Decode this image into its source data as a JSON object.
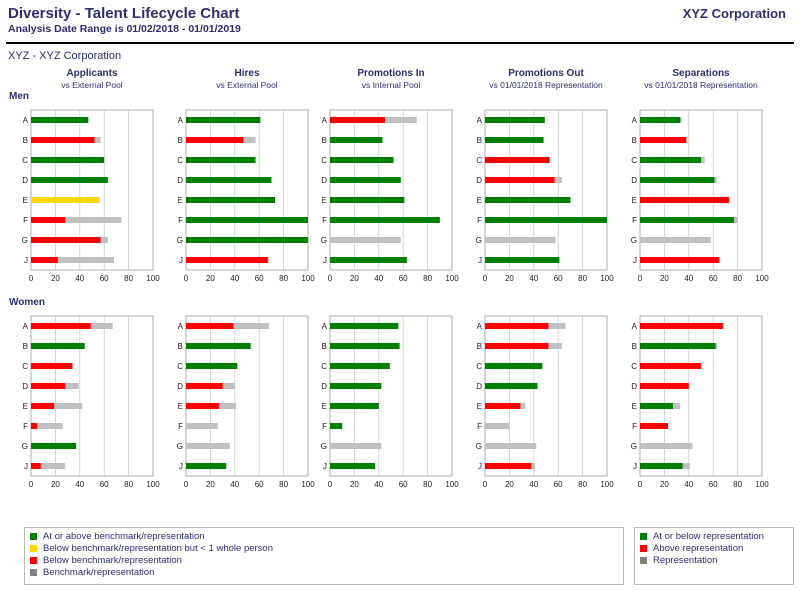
{
  "header": {
    "title": "Diversity - Talent Lifecycle Chart",
    "subtitle": "Analysis Date Range is 01/02/2018 - 01/01/2019",
    "company": "XYZ Corporation",
    "org_label": "XYZ - XYZ Corporation"
  },
  "colors": {
    "green": "#008000",
    "yellow": "#ffd700",
    "red": "#ff0000",
    "gray": "#c0c0c0"
  },
  "legend_left": [
    {
      "label": "At or above benchmark/representation",
      "color": "#008000"
    },
    {
      "label": "Below benchmark/representation but < 1 whole person",
      "color": "#ffd700"
    },
    {
      "label": "Below benchmark/representation",
      "color": "#ff0000"
    },
    {
      "label": "Benchmark/representation",
      "color": "#808080"
    }
  ],
  "legend_right": [
    {
      "label": "At or below representation",
      "color": "#008000"
    },
    {
      "label": "Above representation",
      "color": "#ff0000"
    },
    {
      "label": "Representation",
      "color": "#808080"
    }
  ],
  "chart_data": {
    "type": "bar",
    "orientation": "horizontal",
    "categories": [
      "A",
      "B",
      "C",
      "D",
      "E",
      "F",
      "G",
      "J"
    ],
    "xlim": [
      0,
      100
    ],
    "xticks": [
      "0",
      "20",
      "40",
      "60",
      "80",
      "100"
    ],
    "grid": true,
    "columns": [
      {
        "title": "Applicants",
        "subtitle": "vs External Pool"
      },
      {
        "title": "Hires",
        "subtitle": "vs External Pool"
      },
      {
        "title": "Promotions In",
        "subtitle": "vs Internal Pool"
      },
      {
        "title": "Promotions Out",
        "subtitle": "vs 01/01/2018 Representation"
      },
      {
        "title": "Separations",
        "subtitle": "vs 01/01/2018 Representation"
      }
    ],
    "rows": [
      {
        "label": "Men",
        "panels": [
          {
            "bars": [
              {
                "value": 47,
                "benchmark": 47,
                "status": "green"
              },
              {
                "value": 52,
                "benchmark": 57,
                "status": "red"
              },
              {
                "value": 60,
                "benchmark": 60,
                "status": "green"
              },
              {
                "value": 63,
                "benchmark": 63,
                "status": "green"
              },
              {
                "value": 56,
                "benchmark": 56,
                "status": "yellow"
              },
              {
                "value": 28,
                "benchmark": 74,
                "status": "red"
              },
              {
                "value": 57,
                "benchmark": 63,
                "status": "red"
              },
              {
                "value": 22,
                "benchmark": 68,
                "status": "red"
              }
            ]
          },
          {
            "bars": [
              {
                "value": 61,
                "benchmark": 61,
                "status": "green"
              },
              {
                "value": 47,
                "benchmark": 57,
                "status": "red"
              },
              {
                "value": 57,
                "benchmark": 57,
                "status": "green"
              },
              {
                "value": 70,
                "benchmark": 70,
                "status": "green"
              },
              {
                "value": 73,
                "benchmark": 73,
                "status": "green"
              },
              {
                "value": 100,
                "benchmark": 100,
                "status": "green"
              },
              {
                "value": 100,
                "benchmark": 100,
                "status": "green"
              },
              {
                "value": 67,
                "benchmark": 68,
                "status": "red"
              }
            ]
          },
          {
            "bars": [
              {
                "value": 45,
                "benchmark": 71,
                "status": "red"
              },
              {
                "value": 43,
                "benchmark": 43,
                "status": "green"
              },
              {
                "value": 52,
                "benchmark": 52,
                "status": "green"
              },
              {
                "value": 58,
                "benchmark": 58,
                "status": "green"
              },
              {
                "value": 61,
                "benchmark": 61,
                "status": "green"
              },
              {
                "value": 90,
                "benchmark": 90,
                "status": "green"
              },
              {
                "value": 0,
                "benchmark": 58,
                "status": "red"
              },
              {
                "value": 63,
                "benchmark": 63,
                "status": "green"
              }
            ]
          },
          {
            "bars": [
              {
                "value": 49,
                "benchmark": 49,
                "status": "green"
              },
              {
                "value": 48,
                "benchmark": 48,
                "status": "green"
              },
              {
                "value": 53,
                "benchmark": 53,
                "status": "red"
              },
              {
                "value": 57,
                "benchmark": 63,
                "status": "red"
              },
              {
                "value": 70,
                "benchmark": 70,
                "status": "green"
              },
              {
                "value": 100,
                "benchmark": 100,
                "status": "green"
              },
              {
                "value": 0,
                "benchmark": 58,
                "status": "green"
              },
              {
                "value": 61,
                "benchmark": 61,
                "status": "green"
              }
            ]
          },
          {
            "bars": [
              {
                "value": 33,
                "benchmark": 34,
                "status": "green"
              },
              {
                "value": 38,
                "benchmark": 38,
                "status": "red"
              },
              {
                "value": 50,
                "benchmark": 53,
                "status": "green"
              },
              {
                "value": 61,
                "benchmark": 63,
                "status": "green"
              },
              {
                "value": 73,
                "benchmark": 73,
                "status": "red"
              },
              {
                "value": 77,
                "benchmark": 80,
                "status": "green"
              },
              {
                "value": 0,
                "benchmark": 58,
                "status": "green"
              },
              {
                "value": 65,
                "benchmark": 65,
                "status": "red"
              }
            ]
          }
        ]
      },
      {
        "label": "Women",
        "panels": [
          {
            "bars": [
              {
                "value": 49,
                "benchmark": 67,
                "status": "red"
              },
              {
                "value": 44,
                "benchmark": 44,
                "status": "green"
              },
              {
                "value": 34,
                "benchmark": 34,
                "status": "red"
              },
              {
                "value": 28,
                "benchmark": 39,
                "status": "red"
              },
              {
                "value": 19,
                "benchmark": 42,
                "status": "red"
              },
              {
                "value": 5,
                "benchmark": 26,
                "status": "red"
              },
              {
                "value": 37,
                "benchmark": 37,
                "status": "green"
              },
              {
                "value": 8,
                "benchmark": 28,
                "status": "red"
              }
            ]
          },
          {
            "bars": [
              {
                "value": 39,
                "benchmark": 68,
                "status": "red"
              },
              {
                "value": 53,
                "benchmark": 53,
                "status": "green"
              },
              {
                "value": 42,
                "benchmark": 42,
                "status": "green"
              },
              {
                "value": 30,
                "benchmark": 40,
                "status": "red"
              },
              {
                "value": 27,
                "benchmark": 41,
                "status": "red"
              },
              {
                "value": 0,
                "benchmark": 26,
                "status": "red"
              },
              {
                "value": 0,
                "benchmark": 36,
                "status": "red"
              },
              {
                "value": 33,
                "benchmark": 33,
                "status": "green"
              }
            ]
          },
          {
            "bars": [
              {
                "value": 56,
                "benchmark": 56,
                "status": "green"
              },
              {
                "value": 57,
                "benchmark": 57,
                "status": "green"
              },
              {
                "value": 49,
                "benchmark": 49,
                "status": "green"
              },
              {
                "value": 42,
                "benchmark": 42,
                "status": "green"
              },
              {
                "value": 40,
                "benchmark": 40,
                "status": "green"
              },
              {
                "value": 10,
                "benchmark": 10,
                "status": "green"
              },
              {
                "value": 0,
                "benchmark": 42,
                "status": "green"
              },
              {
                "value": 37,
                "benchmark": 37,
                "status": "green"
              }
            ]
          },
          {
            "bars": [
              {
                "value": 52,
                "benchmark": 66,
                "status": "red"
              },
              {
                "value": 52,
                "benchmark": 63,
                "status": "red"
              },
              {
                "value": 47,
                "benchmark": 47,
                "status": "green"
              },
              {
                "value": 43,
                "benchmark": 43,
                "status": "green"
              },
              {
                "value": 29,
                "benchmark": 33,
                "status": "red"
              },
              {
                "value": 0,
                "benchmark": 20,
                "status": "red"
              },
              {
                "value": 0,
                "benchmark": 42,
                "status": "red"
              },
              {
                "value": 38,
                "benchmark": 41,
                "status": "red"
              }
            ]
          },
          {
            "bars": [
              {
                "value": 68,
                "benchmark": 68,
                "status": "red"
              },
              {
                "value": 62,
                "benchmark": 63,
                "status": "green"
              },
              {
                "value": 50,
                "benchmark": 50,
                "status": "red"
              },
              {
                "value": 40,
                "benchmark": 40,
                "status": "red"
              },
              {
                "value": 27,
                "benchmark": 33,
                "status": "green"
              },
              {
                "value": 23,
                "benchmark": 23,
                "status": "red"
              },
              {
                "value": 0,
                "benchmark": 43,
                "status": "green"
              },
              {
                "value": 35,
                "benchmark": 41,
                "status": "green"
              }
            ]
          }
        ]
      }
    ]
  }
}
